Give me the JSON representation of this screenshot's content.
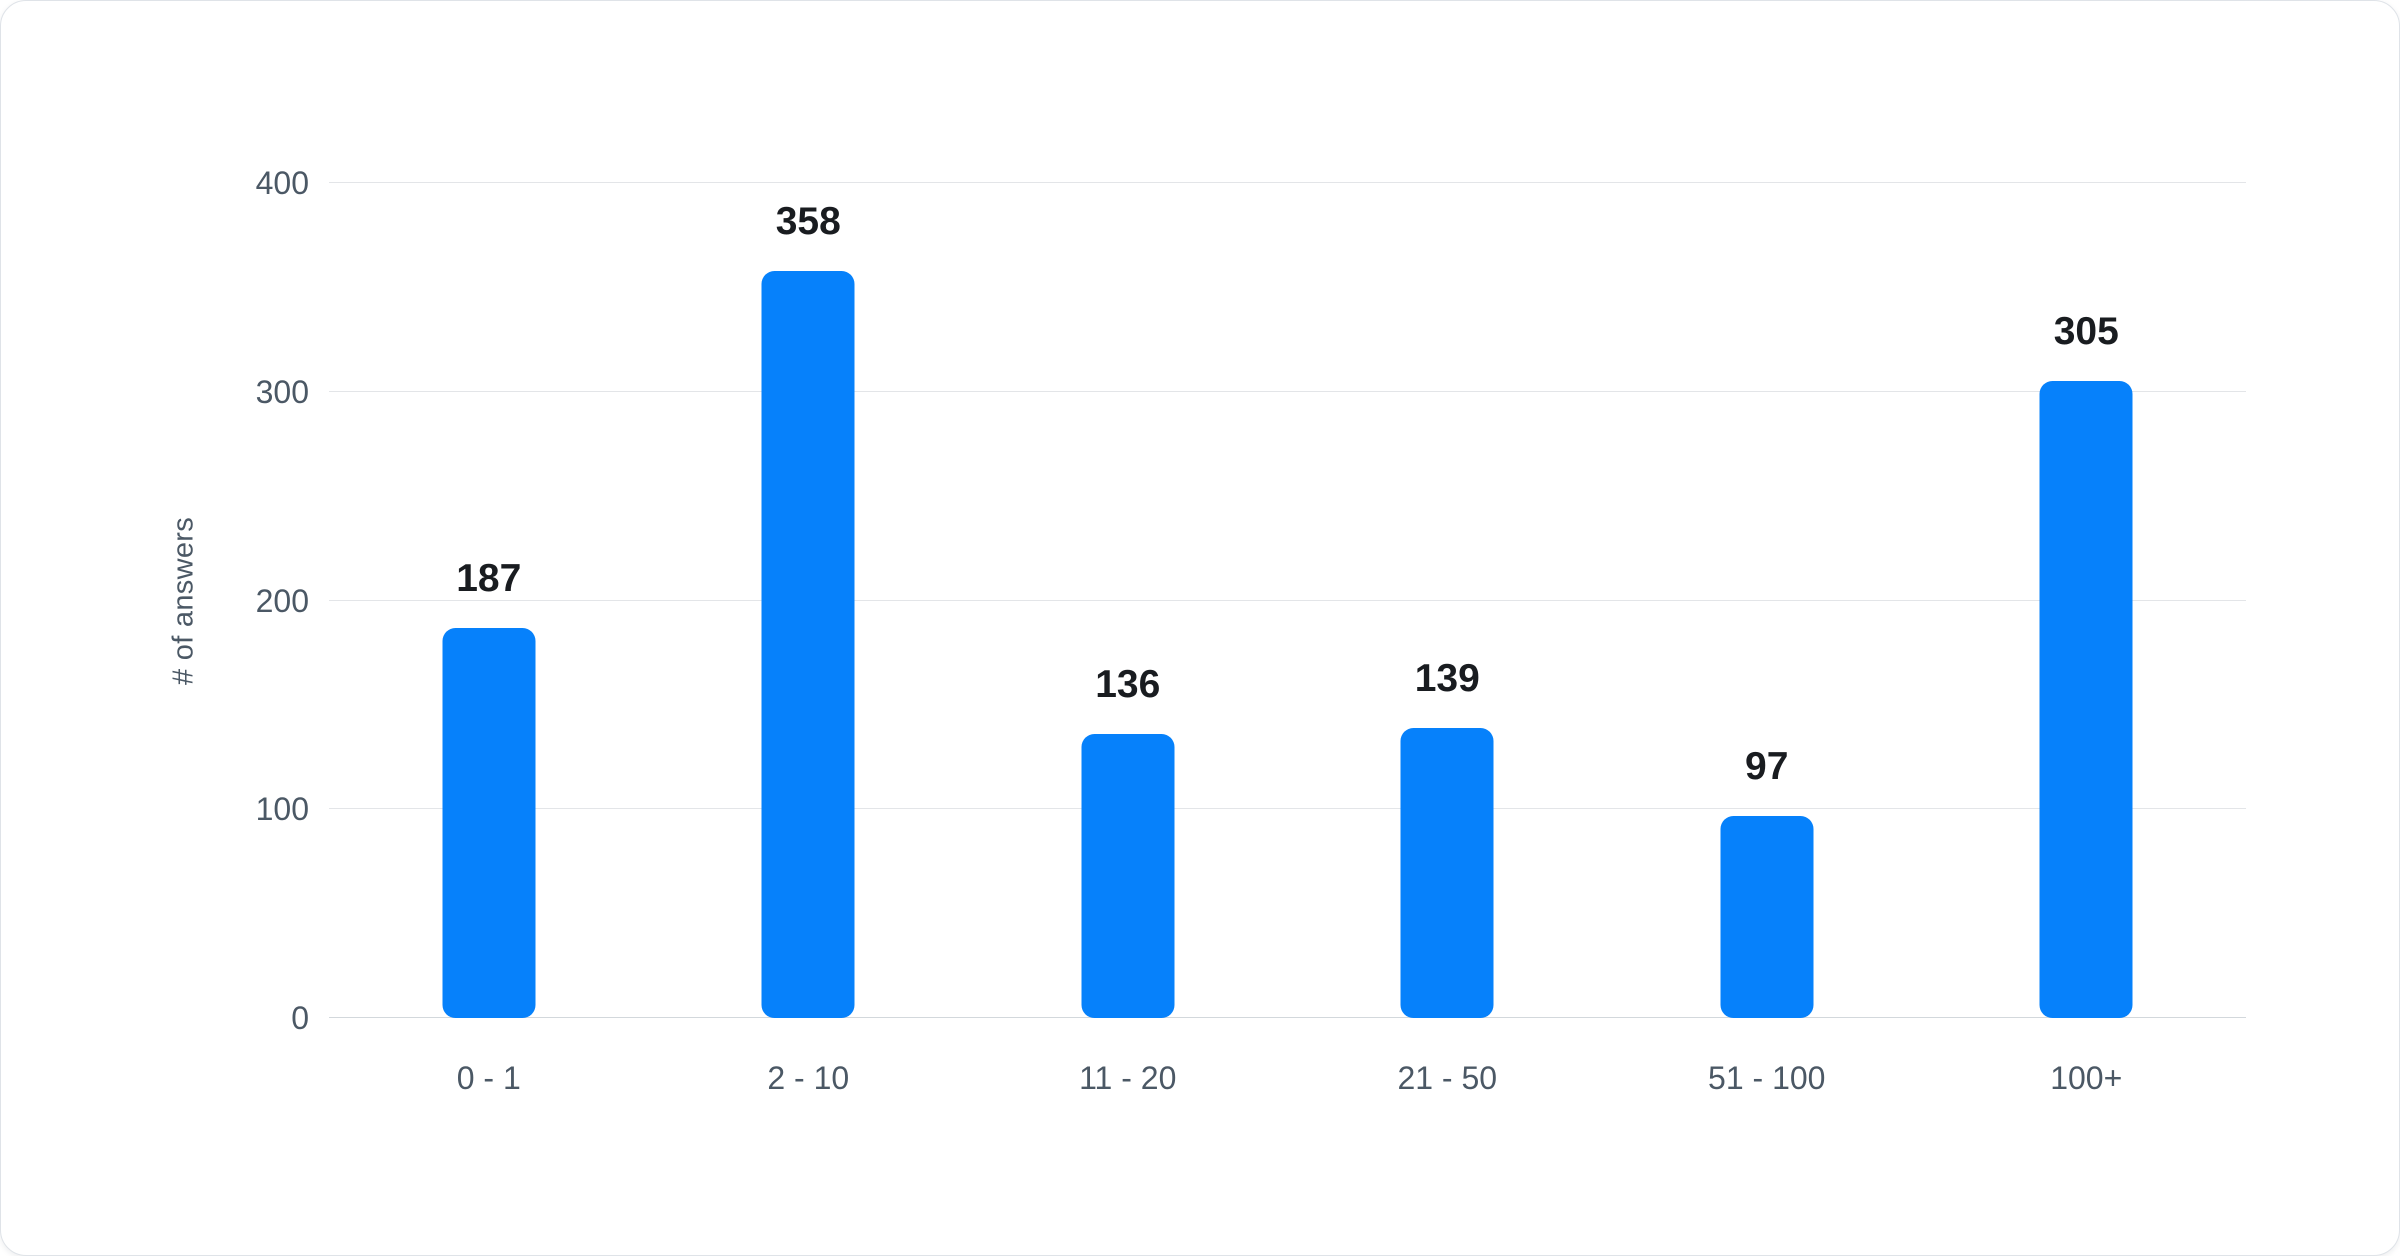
{
  "chart_data": {
    "type": "bar",
    "categories": [
      "0 - 1",
      "2 - 10",
      "11 - 20",
      "21 - 50",
      "51 - 100",
      "100+"
    ],
    "values": [
      187,
      358,
      136,
      139,
      97,
      305
    ],
    "title": "",
    "xlabel": "",
    "ylabel": "# of answers",
    "yticks": [
      0,
      100,
      200,
      300,
      400
    ],
    "ylim": [
      0,
      400
    ],
    "grid": true,
    "legend": "none",
    "colors": {
      "bar": "#0681fb",
      "value_label": "#191c20",
      "axis_text": "#4b5865",
      "gridline": "#e3e5e8",
      "baseline": "#d3d8dc",
      "card_background": "#ffffff",
      "card_border": "#dfe3e8"
    }
  }
}
